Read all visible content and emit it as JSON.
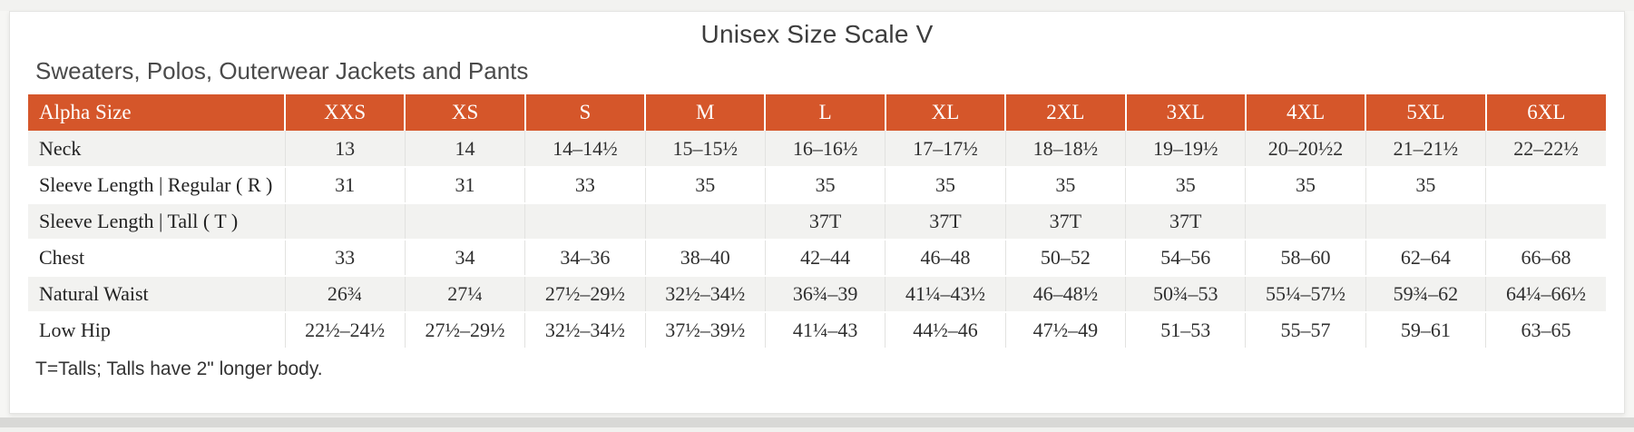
{
  "page": {
    "title": "Unisex Size Scale V",
    "subtitle": "Sweaters, Polos, Outerwear Jackets and Pants",
    "footnote": "T=Talls; Talls have 2\" longer body."
  },
  "colors": {
    "header_bg": "#d5562a",
    "header_text": "#ffffff",
    "row_alt_bg": "#f2f2f0"
  },
  "table": {
    "columns": [
      "Alpha Size",
      "XXS",
      "XS",
      "S",
      "M",
      "L",
      "XL",
      "2XL",
      "3XL",
      "4XL",
      "5XL",
      "6XL"
    ],
    "rows": [
      {
        "label": "Neck",
        "values": [
          "13",
          "14",
          "14–14½",
          "15–15½",
          "16–16½",
          "17–17½",
          "18–18½",
          "19–19½",
          "20–20½2",
          "21–21½",
          "22–22½"
        ]
      },
      {
        "label": "Sleeve Length  |  Regular ( R )",
        "values": [
          "31",
          "31",
          "33",
          "35",
          "35",
          "35",
          "35",
          "35",
          "35",
          "35",
          ""
        ]
      },
      {
        "label": "Sleeve Length  |  Tall ( T )",
        "values": [
          "",
          "",
          "",
          "",
          "37T",
          "37T",
          "37T",
          "37T",
          "",
          "",
          ""
        ]
      },
      {
        "label": "Chest",
        "values": [
          "33",
          "34",
          "34–36",
          "38–40",
          "42–44",
          "46–48",
          "50–52",
          "54–56",
          "58–60",
          "62–64",
          "66–68"
        ]
      },
      {
        "label": "Natural Waist",
        "values": [
          "26¾",
          "27¼",
          "27½–29½",
          "32½–34½",
          "36¾–39",
          "41¼–43½",
          "46–48½",
          "50¾–53",
          "55¼–57½",
          "59¾–62",
          "64¼–66½"
        ]
      },
      {
        "label": "Low Hip",
        "values": [
          "22½–24½",
          "27½–29½",
          "32½–34½",
          "37½–39½",
          "41¼–43",
          "44½–46",
          "47½–49",
          "51–53",
          "55–57",
          "59–61",
          "63–65"
        ]
      }
    ]
  }
}
